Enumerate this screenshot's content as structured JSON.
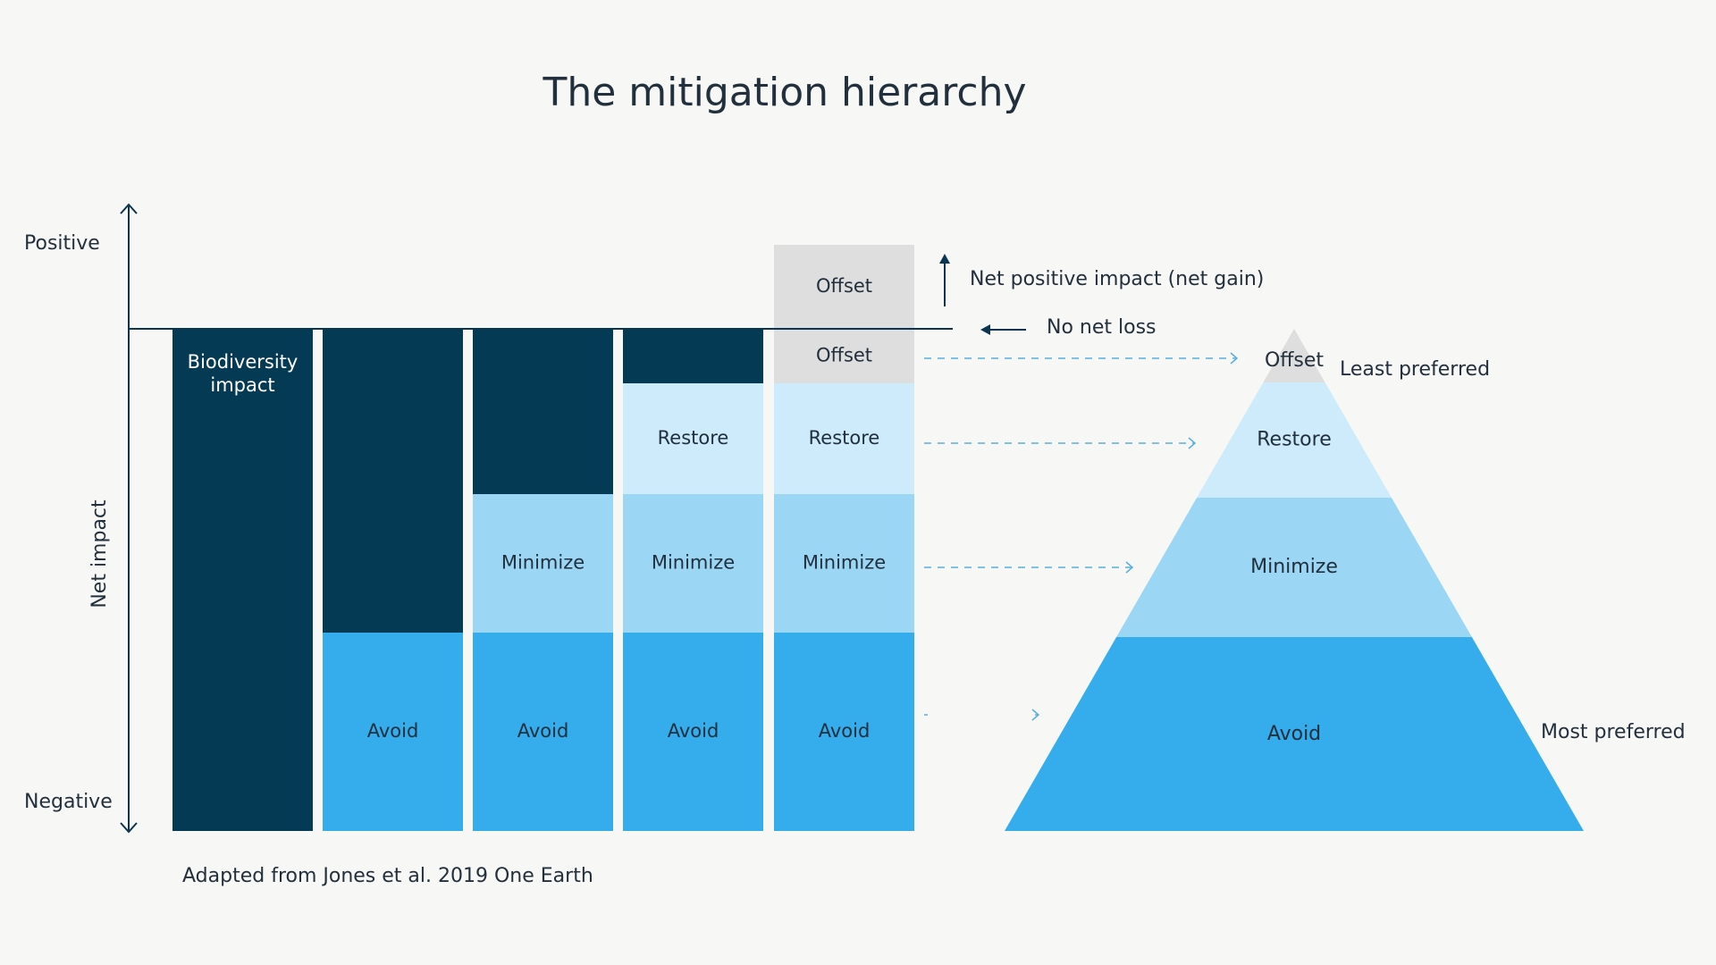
{
  "title": "The mitigation hierarchy",
  "caption": "Adapted from Jones et al. 2019 One Earth",
  "axis": {
    "positive": "Positive",
    "negative": "Negative",
    "label": "Net impact"
  },
  "annotations": {
    "net_positive": "Net positive impact (net gain)",
    "no_net_loss": "No net loss"
  },
  "colors": {
    "background": "#f7f7f5",
    "impact": "#053a55",
    "avoid": "#35acec",
    "minimize": "#9bd6f5",
    "restore": "#cdebfb",
    "offset": "#dedede",
    "text_dark": "#22303d",
    "text_light": "#ffffff",
    "dash": "#5aaee0"
  },
  "columns": [
    {
      "segments": [
        {
          "label": "Biodiversity\nimpact",
          "kind": "impact"
        }
      ]
    },
    {
      "segments": [
        {
          "label": "",
          "kind": "impact"
        },
        {
          "label": "Avoid",
          "kind": "avoid"
        }
      ]
    },
    {
      "segments": [
        {
          "label": "",
          "kind": "impact"
        },
        {
          "label": "Minimize",
          "kind": "minimize"
        },
        {
          "label": "Avoid",
          "kind": "avoid"
        }
      ]
    },
    {
      "segments": [
        {
          "label": "",
          "kind": "impact"
        },
        {
          "label": "Restore",
          "kind": "restore"
        },
        {
          "label": "Minimize",
          "kind": "minimize"
        },
        {
          "label": "Avoid",
          "kind": "avoid"
        }
      ]
    },
    {
      "segments": [
        {
          "label": "Offset",
          "kind": "offset"
        },
        {
          "label": "Offset",
          "kind": "offset"
        },
        {
          "label": "Restore",
          "kind": "restore"
        },
        {
          "label": "Minimize",
          "kind": "minimize"
        },
        {
          "label": "Avoid",
          "kind": "avoid"
        }
      ]
    }
  ],
  "pyramid": {
    "levels": [
      {
        "label": "Offset",
        "kind": "offset"
      },
      {
        "label": "Restore",
        "kind": "restore"
      },
      {
        "label": "Minimize",
        "kind": "minimize"
      },
      {
        "label": "Avoid",
        "kind": "avoid"
      }
    ],
    "top_label": "Least preferred",
    "bottom_label": "Most preferred"
  }
}
